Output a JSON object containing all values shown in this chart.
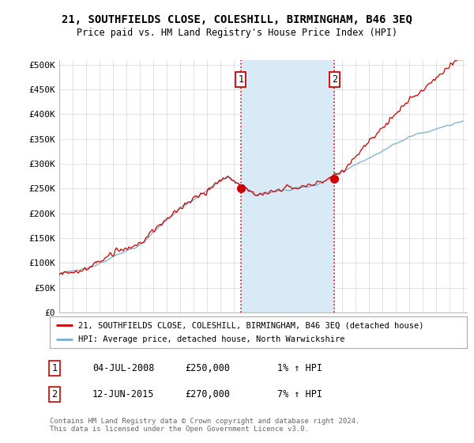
{
  "title": "21, SOUTHFIELDS CLOSE, COLESHILL, BIRMINGHAM, B46 3EQ",
  "subtitle": "Price paid vs. HM Land Registry's House Price Index (HPI)",
  "ylabel_ticks": [
    "£0",
    "£50K",
    "£100K",
    "£150K",
    "£200K",
    "£250K",
    "£300K",
    "£350K",
    "£400K",
    "£450K",
    "£500K"
  ],
  "ytick_values": [
    0,
    50000,
    100000,
    150000,
    200000,
    250000,
    300000,
    350000,
    400000,
    450000,
    500000
  ],
  "ylim": [
    0,
    510000
  ],
  "xlim_start": 1995.0,
  "xlim_end": 2025.3,
  "sale1_x": 2008.5,
  "sale1_price": 250000,
  "sale2_x": 2015.45,
  "sale2_price": 270000,
  "legend_line1": "21, SOUTHFIELDS CLOSE, COLESHILL, BIRMINGHAM, B46 3EQ (detached house)",
  "legend_line2": "HPI: Average price, detached house, North Warwickshire",
  "annotation1_date": "04-JUL-2008",
  "annotation1_price": "£250,000",
  "annotation1_hpi": "1% ↑ HPI",
  "annotation2_date": "12-JUN-2015",
  "annotation2_price": "£270,000",
  "annotation2_hpi": "7% ↑ HPI",
  "footer": "Contains HM Land Registry data © Crown copyright and database right 2024.\nThis data is licensed under the Open Government Licence v3.0.",
  "line_color_red": "#cc0000",
  "line_color_blue": "#7aadcc",
  "shade_color": "#d8eaf5",
  "vline_color": "#cc0000",
  "background_color": "#ffffff",
  "grid_color": "#cccccc"
}
